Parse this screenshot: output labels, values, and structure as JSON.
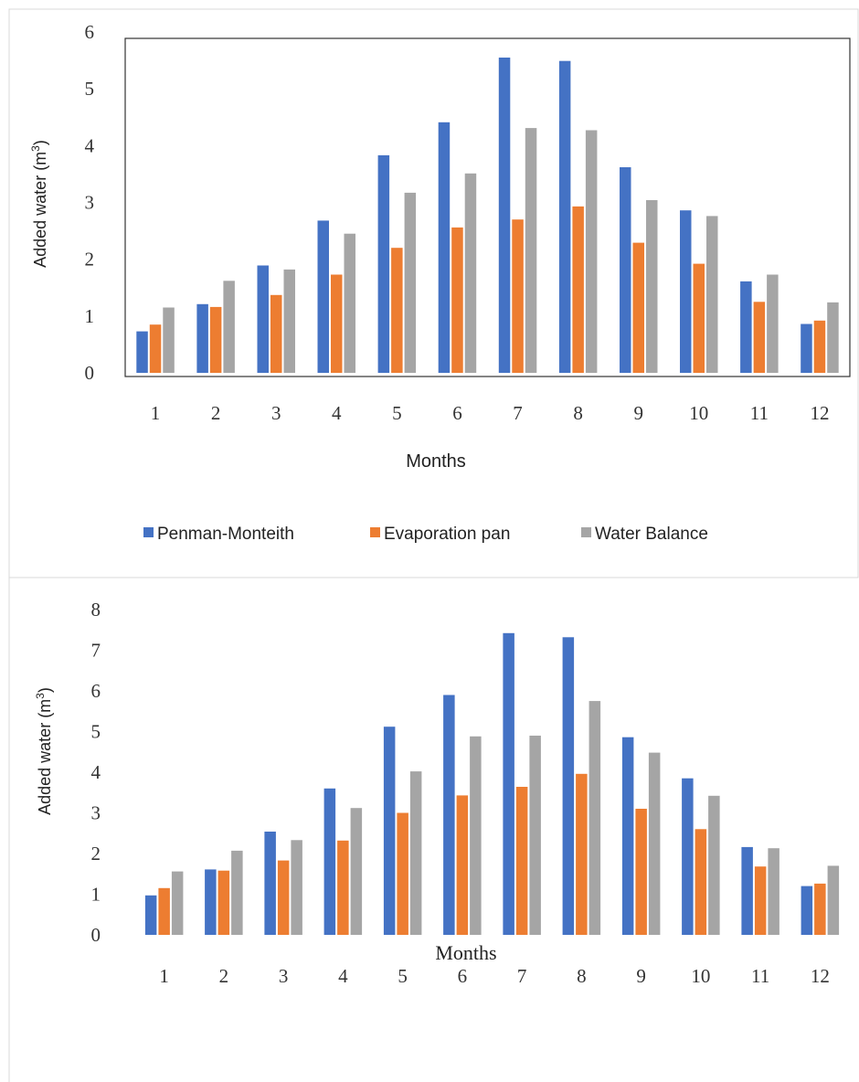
{
  "colors": {
    "penman": "#4472C4",
    "pan": "#ED7D31",
    "balance": "#A5A5A5",
    "panel_border": "#D9D9D9",
    "plot_border": "#333333"
  },
  "legend": {
    "position": "bottom-center",
    "items": [
      "Penman-Monteith",
      "Evaporation pan",
      "Water Balance"
    ]
  },
  "chart_data": [
    {
      "type": "bar",
      "xlabel": "Months",
      "ylabel_prefix": "Added water (m",
      "ylabel_sup": "3",
      "ylabel_suffix": ")",
      "ylim": [
        0,
        6
      ],
      "yticks": [
        "0",
        "1",
        "2",
        "3",
        "4",
        "5",
        "6"
      ],
      "grid": false,
      "categories": [
        "1",
        "2",
        "3",
        "4",
        "5",
        "6",
        "7",
        "8",
        "9",
        "10",
        "11",
        "12"
      ],
      "series": [
        {
          "name": "Penman-Monteith",
          "values": [
            0.73,
            1.21,
            1.89,
            2.68,
            3.83,
            4.41,
            5.55,
            5.49,
            3.62,
            2.86,
            1.61,
            0.86
          ]
        },
        {
          "name": "Evaporation pan",
          "values": [
            0.85,
            1.16,
            1.37,
            1.73,
            2.2,
            2.56,
            2.7,
            2.93,
            2.29,
            1.92,
            1.25,
            0.92
          ]
        },
        {
          "name": "Water Balance",
          "values": [
            1.15,
            1.62,
            1.82,
            2.45,
            3.17,
            3.51,
            4.31,
            4.27,
            3.04,
            2.76,
            1.73,
            1.24
          ]
        }
      ]
    },
    {
      "type": "bar",
      "xlabel": "Months",
      "ylabel_prefix": "Added water (m",
      "ylabel_sup": "3",
      "ylabel_suffix": ")",
      "ylim": [
        0,
        8
      ],
      "yticks": [
        "0",
        "1",
        "2",
        "3",
        "4",
        "5",
        "6",
        "7",
        "8"
      ],
      "grid": false,
      "categories": [
        "1",
        "2",
        "3",
        "4",
        "5",
        "6",
        "7",
        "8",
        "9",
        "10",
        "11",
        "12"
      ],
      "series": [
        {
          "name": "Penman-Monteith",
          "values": [
            0.97,
            1.61,
            2.54,
            3.6,
            5.12,
            5.9,
            7.42,
            7.32,
            4.86,
            3.85,
            2.16,
            1.2
          ]
        },
        {
          "name": "Evaporation pan",
          "values": [
            1.15,
            1.58,
            1.83,
            2.32,
            3.0,
            3.43,
            3.64,
            3.96,
            3.1,
            2.6,
            1.68,
            1.26
          ]
        },
        {
          "name": "Water Balance",
          "values": [
            1.56,
            2.07,
            2.33,
            3.12,
            4.02,
            4.88,
            4.9,
            5.75,
            4.48,
            3.42,
            2.13,
            1.7
          ]
        }
      ]
    }
  ]
}
